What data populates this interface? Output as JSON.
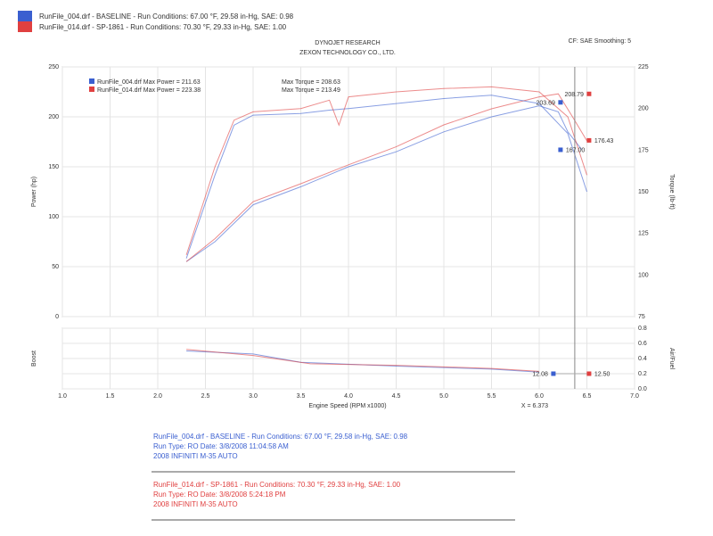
{
  "header": {
    "run1": "RunFile_004.drf - BASELINE - Run Conditions: 67.00 °F, 29.58 in-Hg, SAE: 0.98",
    "run2": "RunFile_014.drf - SP-1861 - Run Conditions: 70.30 °F, 29.33 in-Hg, SAE: 1.00",
    "settings": "CF: SAE Smoothing: 5",
    "title": "DYNOJET RESEARCH",
    "subtitle": "ZEXON TECHNOLOGY CO., LTD."
  },
  "colors": {
    "run1": "#3a5fd0",
    "run2": "#e04040"
  },
  "footer": {
    "run1": [
      "RunFile_004.drf - BASELINE - Run Conditions: 67.00 °F, 29.58 in-Hg, SAE: 0.98",
      "Run Type: RO Date: 3/8/2008 11:04:58 AM",
      "2008 INFINITI M-35 AUTO"
    ],
    "run2": [
      "RunFile_014.drf - SP-1861 - Run Conditions: 70.30 °F, 29.33 in-Hg, SAE: 1.00",
      "Run Type: RO Date: 3/8/2008 5:24:18 PM",
      "2008 INFINITI M-35 AUTO"
    ]
  },
  "chart_data": [
    {
      "type": "line",
      "xlabel": "Engine Speed (RPM x1000)",
      "ylabel": "Power (hp)",
      "y2label": "Torque (lb-ft)",
      "xlim": [
        1.0,
        7.0
      ],
      "ylim": [
        0,
        250
      ],
      "y2lim": [
        75,
        225
      ],
      "xticks": [
        "1.0",
        "1.5",
        "2.0",
        "2.5",
        "3.0",
        "3.5",
        "4.0",
        "4.5",
        "5.0",
        "5.5",
        "6.0",
        "6.5",
        "7.0"
      ],
      "yticks": [
        "0",
        "50",
        "100",
        "150",
        "200",
        "250"
      ],
      "y2ticks": [
        "75",
        "100",
        "125",
        "150",
        "175",
        "200",
        "225"
      ],
      "grid": true,
      "legend": [
        {
          "text": "RunFile_004.drf Max Power = 211.63",
          "torque": "Max Torque = 208.63"
        },
        {
          "text": "RunFile_014.drf Max Power = 223.38",
          "torque": "Max Torque = 213.49"
        }
      ],
      "cursor": {
        "x": 6.373,
        "label": "X = 6.373",
        "values": [
          {
            "run": 2,
            "axis": "y2",
            "value": 208.79,
            "label": "208.79"
          },
          {
            "run": 1,
            "axis": "y2",
            "value": 203.69,
            "label": "203.69"
          },
          {
            "run": 2,
            "axis": "y",
            "value": 176.43,
            "label": "176.43"
          },
          {
            "run": 1,
            "axis": "y",
            "value": 167.0,
            "label": "167.00"
          }
        ]
      },
      "series": [
        {
          "run": 1,
          "axis": "y",
          "points": [
            [
              2.3,
              55
            ],
            [
              2.6,
              75
            ],
            [
              3.0,
              112
            ],
            [
              3.5,
              130
            ],
            [
              4.0,
              150
            ],
            [
              4.5,
              165
            ],
            [
              5.0,
              185
            ],
            [
              5.5,
              200
            ],
            [
              6.0,
              211
            ],
            [
              6.2,
              205
            ],
            [
              6.3,
              185
            ],
            [
              6.45,
              167
            ]
          ]
        },
        {
          "run": 2,
          "axis": "y",
          "points": [
            [
              2.3,
              55
            ],
            [
              2.6,
              78
            ],
            [
              3.0,
              115
            ],
            [
              3.5,
              133
            ],
            [
              4.0,
              152
            ],
            [
              4.5,
              170
            ],
            [
              5.0,
              192
            ],
            [
              5.5,
              208
            ],
            [
              6.0,
              220
            ],
            [
              6.2,
              223
            ],
            [
              6.35,
              200
            ],
            [
              6.5,
              176
            ]
          ]
        },
        {
          "run": 1,
          "axis": "y2",
          "points": [
            [
              2.3,
              110
            ],
            [
              2.6,
              160
            ],
            [
              2.8,
              190
            ],
            [
              3.0,
              196
            ],
            [
              3.5,
              197
            ],
            [
              3.8,
              199
            ],
            [
              4.0,
              200
            ],
            [
              4.5,
              203
            ],
            [
              5.0,
              206
            ],
            [
              5.5,
              208
            ],
            [
              6.0,
              203
            ],
            [
              6.3,
              185
            ],
            [
              6.5,
              150
            ]
          ]
        },
        {
          "run": 2,
          "axis": "y2",
          "points": [
            [
              2.3,
              112
            ],
            [
              2.6,
              165
            ],
            [
              2.8,
              193
            ],
            [
              3.0,
              198
            ],
            [
              3.5,
              200
            ],
            [
              3.8,
              205
            ],
            [
              3.9,
              190
            ],
            [
              4.0,
              207
            ],
            [
              4.5,
              210
            ],
            [
              5.0,
              212
            ],
            [
              5.5,
              213
            ],
            [
              6.0,
              210
            ],
            [
              6.3,
              195
            ],
            [
              6.5,
              160
            ]
          ]
        }
      ]
    },
    {
      "type": "line",
      "ylabel": "Boost",
      "y2label": "Air/Fuel",
      "xlim": [
        1.0,
        7.0
      ],
      "y2lim": [
        0,
        0.8
      ],
      "y2ticks": [
        "0.0",
        "0.2",
        "0.4",
        "0.6",
        "0.8"
      ],
      "cursor_values": [
        {
          "run": 1,
          "label": "12.08"
        },
        {
          "run": 2,
          "label": "12.50"
        }
      ],
      "series": [
        {
          "run": 1,
          "points": [
            [
              2.3,
              0.5
            ],
            [
              3.0,
              0.46
            ],
            [
              3.5,
              0.35
            ],
            [
              4.5,
              0.3
            ],
            [
              5.5,
              0.26
            ],
            [
              6.0,
              0.22
            ]
          ]
        },
        {
          "run": 2,
          "points": [
            [
              2.3,
              0.52
            ],
            [
              3.0,
              0.44
            ],
            [
              3.6,
              0.33
            ],
            [
              4.5,
              0.31
            ],
            [
              5.5,
              0.27
            ],
            [
              6.0,
              0.23
            ]
          ]
        }
      ]
    }
  ]
}
